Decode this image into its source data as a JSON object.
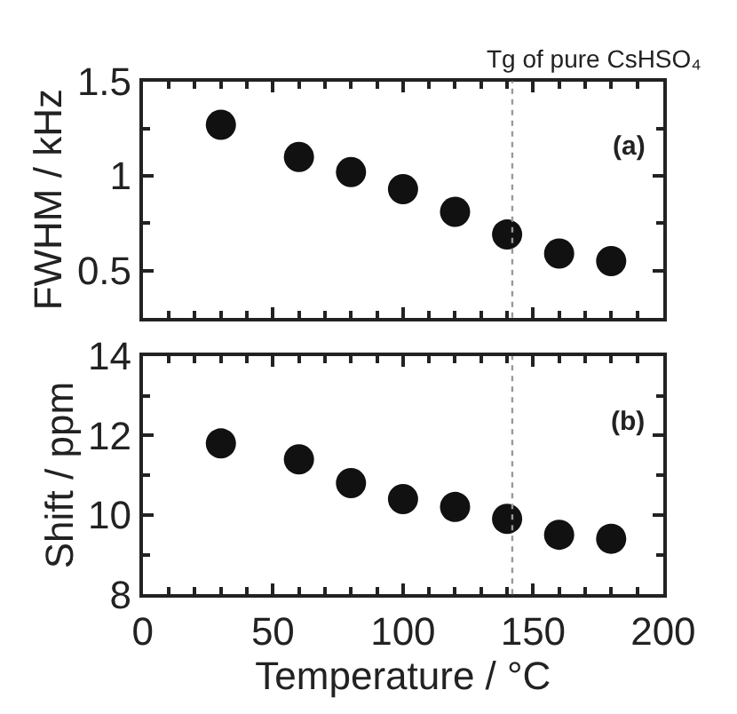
{
  "chart_data": [
    {
      "type": "scatter",
      "ylabel": "FWHM / kHz",
      "x": [
        30,
        60,
        80,
        100,
        120,
        140,
        160,
        180
      ],
      "values": [
        1.27,
        1.1,
        1.02,
        0.93,
        0.81,
        0.69,
        0.59,
        0.55
      ],
      "color": "#111111",
      "marker": "circle",
      "xlim": [
        0,
        200
      ],
      "xticks": [
        0,
        50,
        100,
        150,
        200
      ],
      "ylim": [
        0.25,
        1.5
      ],
      "yticks": [
        0.5,
        1,
        1.5
      ],
      "tick_labels": "y",
      "ref_lines": [
        {
          "axis": "x",
          "value": 142,
          "label": "Tg of pure CsHSO₄",
          "color": "#999999",
          "line_style": "dotted"
        }
      ],
      "annotations": [
        "(a)"
      ]
    },
    {
      "type": "scatter",
      "xlabel": "Temperature / °C",
      "ylabel": "Shift / ppm",
      "x": [
        30,
        60,
        80,
        100,
        120,
        140,
        160,
        180
      ],
      "values": [
        11.8,
        11.4,
        10.8,
        10.4,
        10.2,
        9.9,
        9.5,
        9.4
      ],
      "color": "#111111",
      "marker": "circle",
      "xlim": [
        0,
        200
      ],
      "xticks": [
        0,
        50,
        100,
        150,
        200
      ],
      "ylim": [
        8,
        14
      ],
      "yticks": [
        8,
        10,
        12,
        14
      ],
      "ref_lines": [
        {
          "axis": "x",
          "value": 142,
          "color": "#999999",
          "line_style": "dotted"
        }
      ],
      "annotations": [
        "(b)"
      ]
    }
  ]
}
